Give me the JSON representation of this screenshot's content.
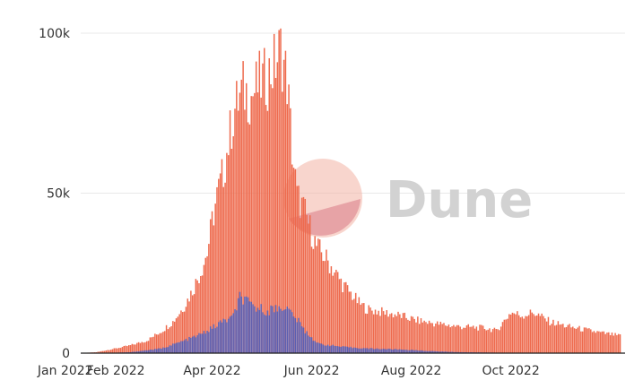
{
  "watermark": {
    "text": "Dune",
    "logo": "dune-logo-icon"
  },
  "chart_data": {
    "type": "bar",
    "stacked": false,
    "colors": {
      "series_a": "#ee6a4d",
      "series_b": "#5d5fb1"
    },
    "x_axis": {
      "type": "date",
      "range": [
        "2021-12-25",
        "2022-12-10"
      ],
      "tick_labels": [
        {
          "label": "Jan 2022",
          "date": "2022-01-01"
        },
        {
          "label": "Feb 2022",
          "date": "2022-02-01"
        },
        {
          "label": "Apr 2022",
          "date": "2022-04-01"
        },
        {
          "label": "Jun 2022",
          "date": "2022-06-01"
        },
        {
          "label": "Aug 2022",
          "date": "2022-08-01"
        },
        {
          "label": "Oct 2022",
          "date": "2022-10-01"
        }
      ]
    },
    "y_axis": {
      "ylim": [
        0,
        100000
      ],
      "tick_labels": [
        {
          "label": "0",
          "value": 0
        },
        {
          "label": "50k",
          "value": 50000
        },
        {
          "label": "100k",
          "value": 100000
        }
      ]
    },
    "grid": true,
    "legend": false,
    "series": [
      {
        "x": [
          "2022-01-01",
          "2022-01-10",
          "2022-01-20",
          "2022-01-27",
          "2022-02-01",
          "2022-02-10",
          "2022-02-20",
          "2022-03-01",
          "2022-03-08",
          "2022-03-15",
          "2022-03-20",
          "2022-03-25",
          "2022-03-29",
          "2022-04-01",
          "2022-04-04",
          "2022-04-08",
          "2022-04-12",
          "2022-04-15",
          "2022-04-20",
          "2022-04-25",
          "2022-04-30",
          "2022-05-05",
          "2022-05-10",
          "2022-05-13",
          "2022-05-17",
          "2022-05-20",
          "2022-05-23",
          "2022-05-27",
          "2022-05-31",
          "2022-06-04",
          "2022-06-10",
          "2022-06-15",
          "2022-06-20",
          "2022-06-25",
          "2022-06-30",
          "2022-07-05",
          "2022-07-15",
          "2022-07-25",
          "2022-08-04",
          "2022-08-15",
          "2022-08-30",
          "2022-09-15",
          "2022-09-20",
          "2022-09-22",
          "2022-10-01",
          "2022-10-08",
          "2022-10-15",
          "2022-10-25",
          "2022-11-05",
          "2022-11-15",
          "2022-11-25",
          "2022-12-07"
        ],
        "y": [
          0,
          0,
          300,
          1000,
          1500,
          2500,
          4000,
          7000,
          10000,
          15000,
          20000,
          26000,
          32000,
          42000,
          50000,
          58000,
          70000,
          78000,
          84000,
          82000,
          86000,
          88000,
          93000,
          97000,
          87000,
          65000,
          50000,
          46000,
          40000,
          34000,
          30000,
          26000,
          22000,
          19000,
          16000,
          14000,
          13000,
          12000,
          10500,
          9500,
          8500,
          8000,
          7500,
          7000,
          13000,
          12000,
          13000,
          10000,
          8500,
          7500,
          6500,
          5500
        ]
      },
      {
        "x": [
          "2022-01-01",
          "2022-01-25",
          "2022-02-10",
          "2022-03-01",
          "2022-03-15",
          "2022-03-25",
          "2022-04-01",
          "2022-04-07",
          "2022-04-14",
          "2022-04-18",
          "2022-04-25",
          "2022-05-05",
          "2022-05-15",
          "2022-05-22",
          "2022-05-28",
          "2022-06-05",
          "2022-06-20",
          "2022-07-05",
          "2022-07-25",
          "2022-08-15",
          "2022-09-01",
          "2022-10-01",
          "2022-11-01",
          "2022-12-07"
        ],
        "y": [
          0,
          0,
          300,
          1500,
          4000,
          6000,
          8000,
          10000,
          11500,
          18000,
          15000,
          13500,
          15000,
          11500,
          7000,
          3000,
          2000,
          1500,
          1200,
          600,
          300,
          100,
          50,
          30
        ]
      }
    ]
  }
}
